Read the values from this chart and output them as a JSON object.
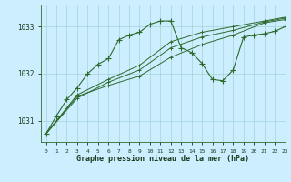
{
  "title": "Graphe pression niveau de la mer (hPa)",
  "background_color": "#cceeff",
  "line_color": "#2d6a2d",
  "grid_color": "#99cccc",
  "xlim": [
    -0.5,
    23
  ],
  "ylim": [
    1030.55,
    1033.45
  ],
  "yticks": [
    1031,
    1032,
    1033
  ],
  "xticks": [
    0,
    1,
    2,
    3,
    4,
    5,
    6,
    7,
    8,
    9,
    10,
    11,
    12,
    13,
    14,
    15,
    16,
    17,
    18,
    19,
    20,
    21,
    22,
    23
  ],
  "series_trend1": {
    "x": [
      0,
      3,
      6,
      9,
      12,
      15,
      18,
      21,
      23
    ],
    "y": [
      1030.72,
      1031.52,
      1031.75,
      1031.95,
      1032.35,
      1032.62,
      1032.82,
      1033.08,
      1033.15
    ]
  },
  "series_trend2": {
    "x": [
      0,
      3,
      6,
      9,
      12,
      15,
      18,
      21,
      23
    ],
    "y": [
      1030.72,
      1031.48,
      1031.82,
      1032.08,
      1032.55,
      1032.78,
      1032.92,
      1033.1,
      1033.18
    ]
  },
  "series_trend3": {
    "x": [
      0,
      3,
      6,
      9,
      12,
      15,
      18,
      21,
      23
    ],
    "y": [
      1030.72,
      1031.55,
      1031.88,
      1032.18,
      1032.68,
      1032.88,
      1033.0,
      1033.12,
      1033.2
    ]
  },
  "series_main": {
    "x": [
      0,
      1,
      2,
      3,
      4,
      5,
      6,
      7,
      8,
      9,
      10,
      11,
      12,
      13,
      14,
      15,
      16,
      17,
      18,
      19,
      20,
      21,
      22,
      23
    ],
    "y": [
      1030.72,
      1031.1,
      1031.45,
      1031.7,
      1032.0,
      1032.2,
      1032.32,
      1032.72,
      1032.82,
      1032.88,
      1033.05,
      1033.12,
      1033.12,
      1032.55,
      1032.45,
      1032.22,
      1031.88,
      1031.85,
      1032.08,
      1032.78,
      1032.82,
      1032.85,
      1032.9,
      1033.0
    ]
  },
  "figwidth": 3.2,
  "figheight": 2.0,
  "dpi": 100
}
